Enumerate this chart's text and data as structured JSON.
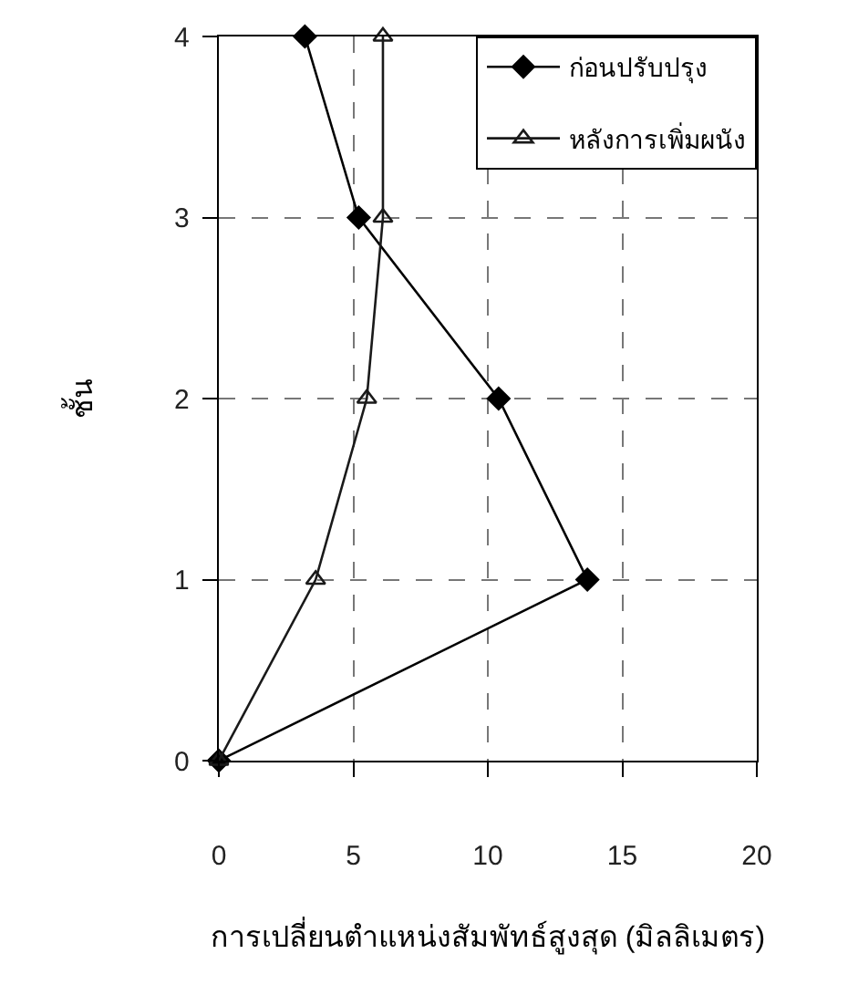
{
  "chart_data": {
    "type": "line",
    "xlabel": "การเปลี่ยนตำแหน่งสัมพัทธ์สูงสุด (มิลลิเมตร)",
    "ylabel": "ชั้น",
    "series": [
      {
        "name": "ก่อนปรับปรุง",
        "color": "#000000",
        "marker": "diamond",
        "x": [
          0,
          13.7,
          10.4,
          5.2,
          3.2
        ],
        "values": [
          0,
          1,
          2,
          3,
          4
        ]
      },
      {
        "name": "หลังการเพิ่มผนัง",
        "color": "#1a1a1a",
        "marker": "triangle",
        "x": [
          0,
          3.6,
          5.5,
          6.1,
          6.1
        ],
        "values": [
          0,
          1,
          2,
          3,
          4
        ]
      }
    ],
    "xlim": [
      0,
      20
    ],
    "xticks": [
      0,
      5,
      10,
      15,
      20
    ],
    "ylim": [
      0,
      4
    ],
    "yticks": [
      0,
      1,
      2,
      3,
      4
    ],
    "grid": true,
    "legend": "top right",
    "line_style": "solid"
  }
}
